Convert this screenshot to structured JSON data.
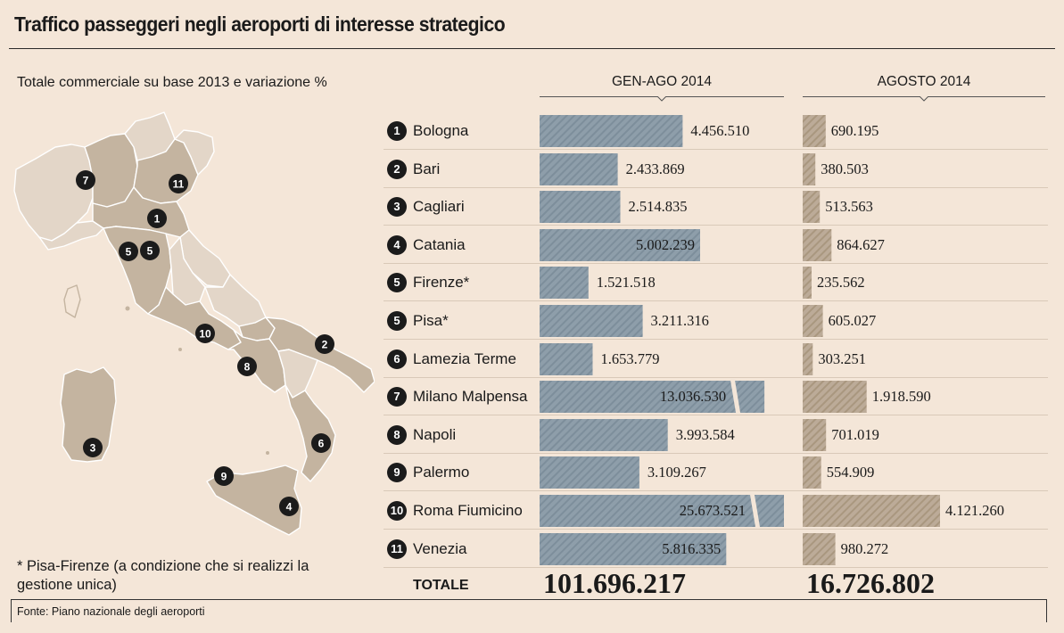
{
  "header": {
    "title": "Traffico passeggeri negli aeroporti di interesse strategico",
    "subtitle": "Totale commerciale su base 2013 e variazione %"
  },
  "columns": {
    "left_label": "GEN-AGO 2014",
    "right_label": "AGOSTO 2014"
  },
  "total": {
    "label": "TOTALE",
    "jan_aug": "101.696.217",
    "august": "16.726.802"
  },
  "footnote": "* Pisa-Firenze (a condizione che si realizzi la gestione unica)",
  "source": "Fonte: Piano nazionale degli aeroporti",
  "colors": {
    "background": "#f4e6d8",
    "bar_left": "#8e9eaa",
    "bar_right": "#bcab98",
    "region_highlight": "#c4b4a0",
    "region_light": "#e3d6c8"
  },
  "chart_data": {
    "type": "bar",
    "title": "Traffico passeggeri negli aeroporti di interesse strategico",
    "subtitle": "Totale commerciale su base 2013 e variazione %",
    "categories": [
      "Bologna",
      "Bari",
      "Cagliari",
      "Catania",
      "Firenze*",
      "Pisa*",
      "Lamezia Terme",
      "Milano Malpensa",
      "Napoli",
      "Palermo",
      "Roma Fiumicino",
      "Venezia"
    ],
    "ranks": [
      "1",
      "2",
      "3",
      "4",
      "5",
      "5",
      "6",
      "7",
      "8",
      "9",
      "10",
      "11"
    ],
    "series": [
      {
        "name": "GEN-AGO 2014",
        "values": [
          4456510,
          2433869,
          2514835,
          5002239,
          1521518,
          3211316,
          1653779,
          13036530,
          3993584,
          3109267,
          25673521,
          5816335
        ],
        "labels": [
          "4.456.510",
          "2.433.869",
          "2.514.835",
          "5.002.239",
          "1.521.518",
          "3.211.316",
          "1.653.779",
          "13.036.530",
          "3.993.584",
          "3.109.267",
          "25.673.521",
          "5.816.335"
        ],
        "broken": [
          false,
          false,
          false,
          false,
          false,
          false,
          false,
          true,
          false,
          false,
          true,
          false
        ],
        "label_inside": [
          false,
          false,
          false,
          true,
          false,
          false,
          false,
          true,
          false,
          false,
          true,
          true
        ]
      },
      {
        "name": "AGOSTO 2014",
        "values": [
          690195,
          380503,
          513563,
          864627,
          235562,
          605027,
          303251,
          1918590,
          701019,
          554909,
          4121260,
          980272
        ],
        "labels": [
          "690.195",
          "380.503",
          "513.563",
          "864.627",
          "235.562",
          "605.027",
          "303.251",
          "1.918.590",
          "701.019",
          "554.909",
          "4.121.260",
          "980.272"
        ]
      }
    ],
    "map_markers": [
      "7",
      "11",
      "1",
      "5",
      "5",
      "10",
      "2",
      "8",
      "3",
      "6",
      "9",
      "4"
    ]
  }
}
